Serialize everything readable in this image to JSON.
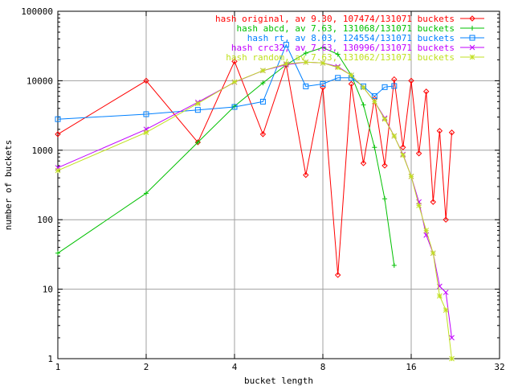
{
  "chart_data": {
    "type": "line",
    "title": "",
    "xlabel": "bucket length",
    "ylabel": "number of buckets",
    "x_scale": "log2",
    "y_scale": "log10",
    "xlim": [
      1,
      32
    ],
    "ylim": [
      1,
      100000
    ],
    "x_ticks": [
      1,
      2,
      4,
      8,
      16,
      32
    ],
    "y_ticks": [
      1,
      10,
      100,
      1000,
      10000,
      100000
    ],
    "grid": true,
    "legend_position": "top-right",
    "series": [
      {
        "name": "hash original, av 9.30, 107474/131071 buckets",
        "color": "#ff0000",
        "marker": "diamond",
        "x": [
          1,
          2,
          3,
          4,
          5,
          6,
          7,
          8,
          9,
          10,
          11,
          12,
          13,
          14,
          15,
          16,
          17,
          18,
          19,
          20,
          21,
          22
        ],
        "y": [
          1700,
          10000,
          1300,
          19000,
          1700,
          17000,
          440,
          8000,
          16,
          9000,
          650,
          5500,
          600,
          10500,
          1100,
          10000,
          900,
          7000,
          180,
          1900,
          100,
          1800
        ]
      },
      {
        "name": "hash abcd, av 7.63, 131068/131071 buckets",
        "color": "#00c000",
        "marker": "plus",
        "x": [
          1,
          2,
          3,
          4,
          5,
          6,
          7,
          8,
          9,
          10,
          11,
          12,
          13,
          14
        ],
        "y": [
          33,
          240,
          1300,
          4300,
          9300,
          17000,
          25000,
          30000,
          24000,
          12000,
          4500,
          1100,
          200,
          22
        ]
      },
      {
        "name": "hash rt, av 8.03, 124554/131071 buckets",
        "color": "#0080ff",
        "marker": "square",
        "x": [
          1,
          2,
          3,
          4,
          5,
          6,
          7,
          8,
          9,
          10,
          11,
          12,
          13,
          14
        ],
        "y": [
          2800,
          3300,
          3800,
          4200,
          5000,
          33000,
          8300,
          9000,
          11000,
          11000,
          8300,
          6000,
          8100,
          8400
        ]
      },
      {
        "name": "hash crc32, av 7.63, 130996/131071 buckets",
        "color": "#c000ff",
        "marker": "x",
        "x": [
          1,
          2,
          3,
          4,
          5,
          6,
          7,
          8,
          9,
          10,
          11,
          12,
          13,
          14,
          15,
          16,
          17,
          18,
          19,
          20,
          21,
          22
        ],
        "y": [
          560,
          2000,
          4900,
          9500,
          14000,
          17000,
          18500,
          18000,
          16000,
          12000,
          8000,
          5000,
          2900,
          1600,
          870,
          420,
          180,
          60,
          33,
          11,
          9,
          2
        ]
      },
      {
        "name": "hash random, av 7.63, 131062/131071 buckets",
        "color": "#c0e020",
        "marker": "star",
        "x": [
          1,
          2,
          3,
          4,
          5,
          6,
          7,
          8,
          9,
          10,
          11,
          12,
          13,
          14,
          15,
          16,
          17,
          18,
          19,
          20,
          21,
          22
        ],
        "y": [
          510,
          1800,
          4700,
          9600,
          14000,
          17500,
          18500,
          18000,
          15500,
          12000,
          8000,
          5000,
          2800,
          1600,
          850,
          420,
          160,
          70,
          33,
          8,
          5,
          1
        ]
      }
    ]
  }
}
